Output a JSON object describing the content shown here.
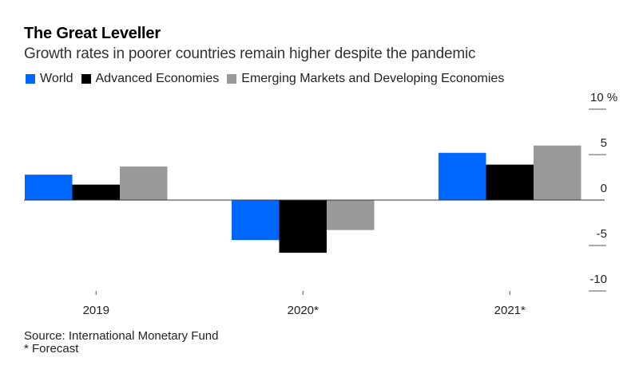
{
  "chart_data": {
    "type": "bar",
    "title": "The Great Leveller",
    "subtitle": "Growth rates in poorer countries remain higher despite the pandemic",
    "categories": [
      "2019",
      "2020*",
      "2021*"
    ],
    "series": [
      {
        "name": "World",
        "color": "#0068ff",
        "values": [
          2.8,
          -4.4,
          5.2
        ]
      },
      {
        "name": "Advanced Economies",
        "color": "#000000",
        "values": [
          1.7,
          -5.8,
          3.9
        ]
      },
      {
        "name": "Emerging Markets and Developing Economies",
        "color": "#999999",
        "values": [
          3.7,
          -3.3,
          6.0
        ]
      }
    ],
    "xlabel": "",
    "ylabel": "%",
    "ylim": [
      -10,
      10
    ],
    "yticks": [
      10,
      5,
      0,
      -5,
      -10
    ],
    "ytick_labels": [
      "10 %",
      "5",
      "0",
      "-5",
      "-10"
    ],
    "y_axis_position": "right",
    "grid": false,
    "legend_position": "top-left"
  },
  "footer": {
    "source": "Source: International Monetary Fund",
    "note": "* Forecast"
  }
}
